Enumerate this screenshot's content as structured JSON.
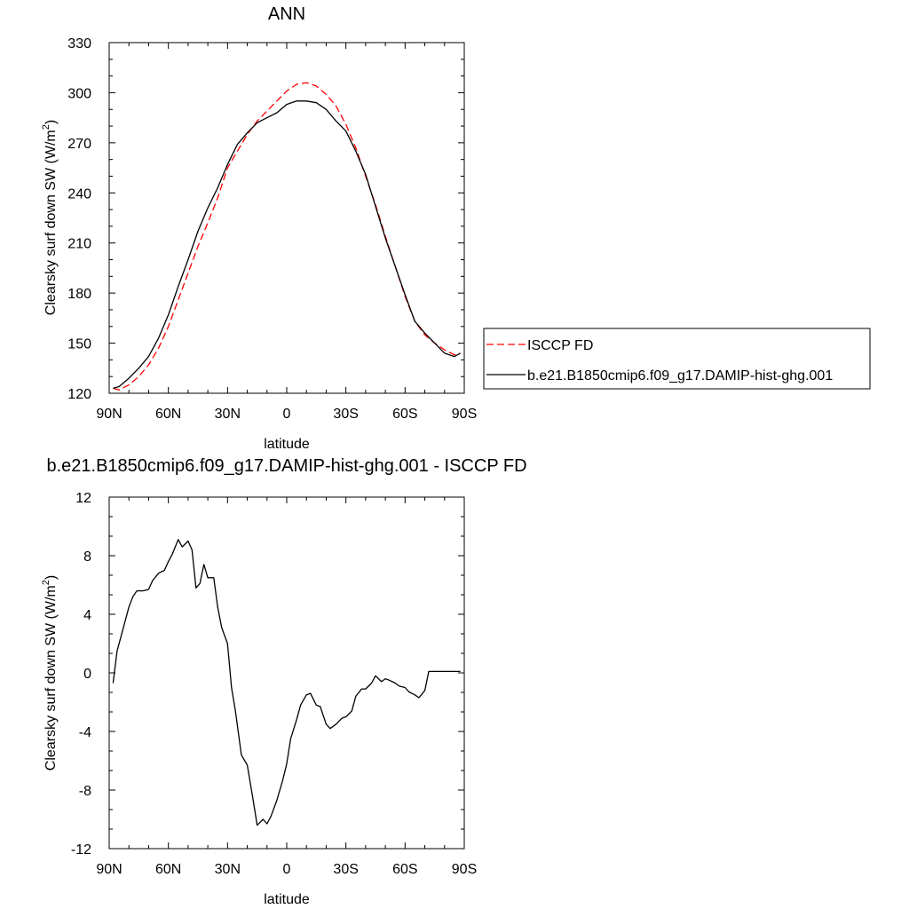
{
  "chart_data": [
    {
      "type": "line",
      "title": "ANN",
      "xlabel": "latitude",
      "ylabel": "Clearsky surf down SW (W/m²)",
      "ylabel_main": "Clearsky surf down SW (W/m",
      "ylabel_sup": "2",
      "ylabel_close": ")",
      "xlim": [
        90,
        -90
      ],
      "ylim": [
        120,
        330
      ],
      "xticks": [
        90,
        60,
        30,
        0,
        -30,
        -60,
        -90
      ],
      "xtick_labels": [
        "90N",
        "60N",
        "30N",
        "0",
        "30S",
        "60S",
        "90S"
      ],
      "yticks": [
        120,
        150,
        180,
        210,
        240,
        270,
        300,
        330
      ],
      "ytick_labels": [
        "120",
        "150",
        "180",
        "210",
        "240",
        "270",
        "300",
        "330"
      ],
      "grid": false,
      "legend_position": "right",
      "x": [
        88,
        85,
        80,
        75,
        70,
        65,
        60,
        55,
        50,
        45,
        40,
        35,
        30,
        25,
        20,
        15,
        10,
        5,
        0,
        -5,
        -10,
        -15,
        -20,
        -25,
        -30,
        -35,
        -40,
        -45,
        -50,
        -55,
        -60,
        -65,
        -70,
        -75,
        -80,
        -85,
        -88
      ],
      "series": [
        {
          "name": "ISCCP FD",
          "color": "#ff0000",
          "dash": "dashed",
          "values": [
            123,
            122,
            125,
            130,
            137,
            147,
            160,
            176,
            192,
            208,
            222,
            237,
            255,
            265,
            275,
            283,
            289,
            295,
            301,
            305,
            306,
            304,
            299,
            292,
            281,
            267,
            250,
            233,
            214,
            196,
            178,
            163,
            155,
            150,
            146,
            143,
            144
          ]
        },
        {
          "name": "b.e21.B1850cmip6.f09_g17.DAMIP-hist-ghg.001",
          "color": "#000000",
          "dash": "solid",
          "values": [
            123,
            124,
            129,
            135,
            142,
            153,
            167,
            184,
            200,
            217,
            231,
            243,
            257,
            269,
            276,
            282,
            285,
            288,
            293,
            295,
            295,
            294,
            290,
            283,
            277,
            265,
            251,
            232,
            213,
            196,
            179,
            163,
            156,
            150,
            144,
            142,
            144
          ]
        }
      ]
    },
    {
      "type": "line",
      "title": "b.e21.B1850cmip6.f09_g17.DAMIP-hist-ghg.001 - ISCCP FD",
      "xlabel": "latitude",
      "ylabel": "Clearsky surf down SW (W/m²)",
      "ylabel_main": "Clearsky surf down SW (W/m",
      "ylabel_sup": "2",
      "ylabel_close": ")",
      "xlim": [
        90,
        -90
      ],
      "ylim": [
        -12,
        12
      ],
      "xticks": [
        90,
        60,
        30,
        0,
        -30,
        -60,
        -90
      ],
      "xtick_labels": [
        "90N",
        "60N",
        "30N",
        "0",
        "30S",
        "60S",
        "90S"
      ],
      "yticks": [
        -12,
        -8,
        -4,
        0,
        4,
        8,
        12
      ],
      "ytick_labels": [
        "-12",
        "-8",
        "-4",
        "0",
        "4",
        "8",
        "12"
      ],
      "grid": false,
      "x": [
        88,
        86,
        82,
        80,
        78,
        76,
        73,
        70,
        68,
        65,
        62,
        60,
        58,
        55,
        53,
        50,
        48,
        46,
        44,
        42,
        40,
        37,
        35,
        33,
        30,
        28,
        26,
        23,
        20,
        17,
        15,
        12,
        10,
        8,
        5,
        2,
        0,
        -2,
        -5,
        -7,
        -10,
        -12,
        -15,
        -17,
        -20,
        -22,
        -25,
        -28,
        -30,
        -33,
        -35,
        -38,
        -40,
        -43,
        -45,
        -48,
        -50,
        -52,
        -55,
        -57,
        -60,
        -62,
        -65,
        -67,
        -70,
        -72,
        -75,
        -78,
        -80,
        -82,
        -85,
        -87,
        -88
      ],
      "series": [
        {
          "name": "b.e21.B1850cmip6.f09_g17.DAMIP-hist-ghg.001 - ISCCP FD",
          "color": "#000000",
          "dash": "solid",
          "values": [
            -0.7,
            1.5,
            3.5,
            4.5,
            5.2,
            5.6,
            5.6,
            5.7,
            6.3,
            6.8,
            7.0,
            7.6,
            8.1,
            9.1,
            8.6,
            9.0,
            8.4,
            5.8,
            6.1,
            7.4,
            6.5,
            6.5,
            4.5,
            3.1,
            2.0,
            -1.0,
            -2.6,
            -5.6,
            -6.3,
            -8.7,
            -10.4,
            -10.0,
            -10.3,
            -9.8,
            -8.7,
            -7.3,
            -6.2,
            -4.5,
            -3.2,
            -2.2,
            -1.5,
            -1.4,
            -2.2,
            -2.3,
            -3.5,
            -3.8,
            -3.5,
            -3.1,
            -3.0,
            -2.6,
            -1.6,
            -1.1,
            -1.1,
            -0.7,
            -0.2,
            -0.6,
            -0.4,
            -0.5,
            -0.7,
            -0.9,
            -1.0,
            -1.3,
            -1.5,
            -1.7,
            -1.2,
            0.1,
            0.1,
            0.1,
            0.1,
            0.1,
            0.1,
            0.1,
            0.1
          ]
        }
      ]
    }
  ]
}
